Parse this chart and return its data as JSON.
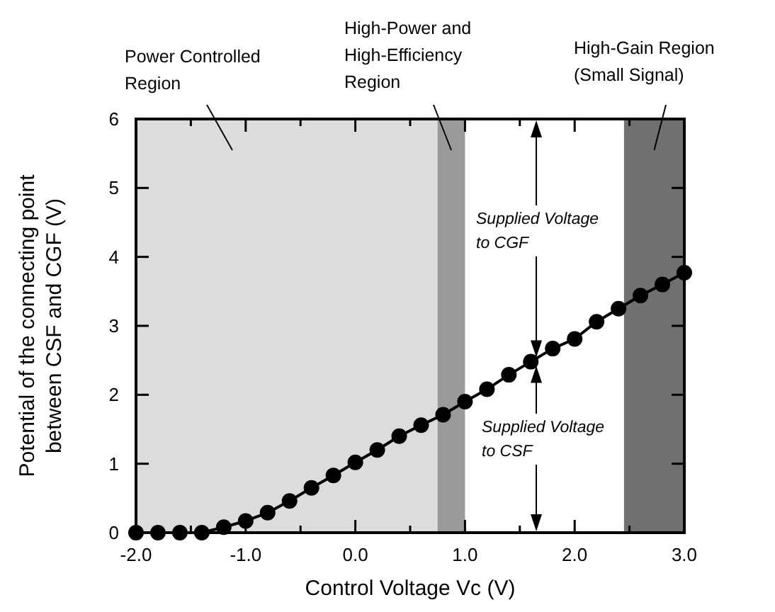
{
  "chart_data": {
    "type": "line",
    "xlabel": "Control Voltage Vc   (V)",
    "ylabel": "Potential of the connecting point\nbetween CSF and CGF (V)",
    "x": [
      -2.0,
      -1.8,
      -1.6,
      -1.4,
      -1.2,
      -1.0,
      -0.8,
      -0.6,
      -0.4,
      -0.2,
      0.0,
      0.2,
      0.4,
      0.6,
      0.8,
      1.0,
      1.2,
      1.4,
      1.6,
      1.8,
      2.0,
      2.2,
      2.4,
      2.6,
      2.8,
      3.0
    ],
    "series": [
      {
        "color": "#000000",
        "values": [
          0,
          0,
          0,
          0,
          0.08,
          0.17,
          0.29,
          0.46,
          0.65,
          0.83,
          1.02,
          1.2,
          1.4,
          1.56,
          1.71,
          1.9,
          2.08,
          2.29,
          2.48,
          2.67,
          2.81,
          3.06,
          3.25,
          3.44,
          3.6,
          3.77
        ]
      }
    ],
    "xlim": [
      -2,
      3
    ],
    "ylim": [
      0,
      6
    ],
    "xticks": [
      {
        "value": -2,
        "label": "-2.0"
      },
      {
        "value": -1.5,
        "label": null
      },
      {
        "value": -1,
        "label": "-1.0"
      },
      {
        "value": -0.5,
        "label": null
      },
      {
        "value": 0,
        "label": "0.0"
      },
      {
        "value": 0.5,
        "label": null
      },
      {
        "value": 1,
        "label": "1.0"
      },
      {
        "value": 1.5,
        "label": null
      },
      {
        "value": 2,
        "label": "2.0"
      },
      {
        "value": 2.5,
        "label": null
      },
      {
        "value": 3,
        "label": "3.0"
      }
    ],
    "yticks": [
      0,
      1,
      2,
      3,
      4,
      5,
      6
    ],
    "bands": [
      {
        "axis": "x",
        "from": -2,
        "to": 0.75,
        "label": "Power Controlled\nRegion",
        "color": "#dcdcdc"
      },
      {
        "axis": "x",
        "from": 0.75,
        "to": 1.0,
        "label": "High-Power and\nHigh-Efficiency\nRegion",
        "color": "#9a9a9a"
      },
      {
        "axis": "x",
        "from": 2.45,
        "to": 3.0,
        "label": "High-Gain Region\n(Small Signal)",
        "color": "#707070"
      }
    ],
    "annotations": [
      "Supplied Voltage\nto CGF",
      "Supplied Voltage\nto CSF"
    ],
    "marker": "circle",
    "line_style": "solid",
    "grid": false
  }
}
